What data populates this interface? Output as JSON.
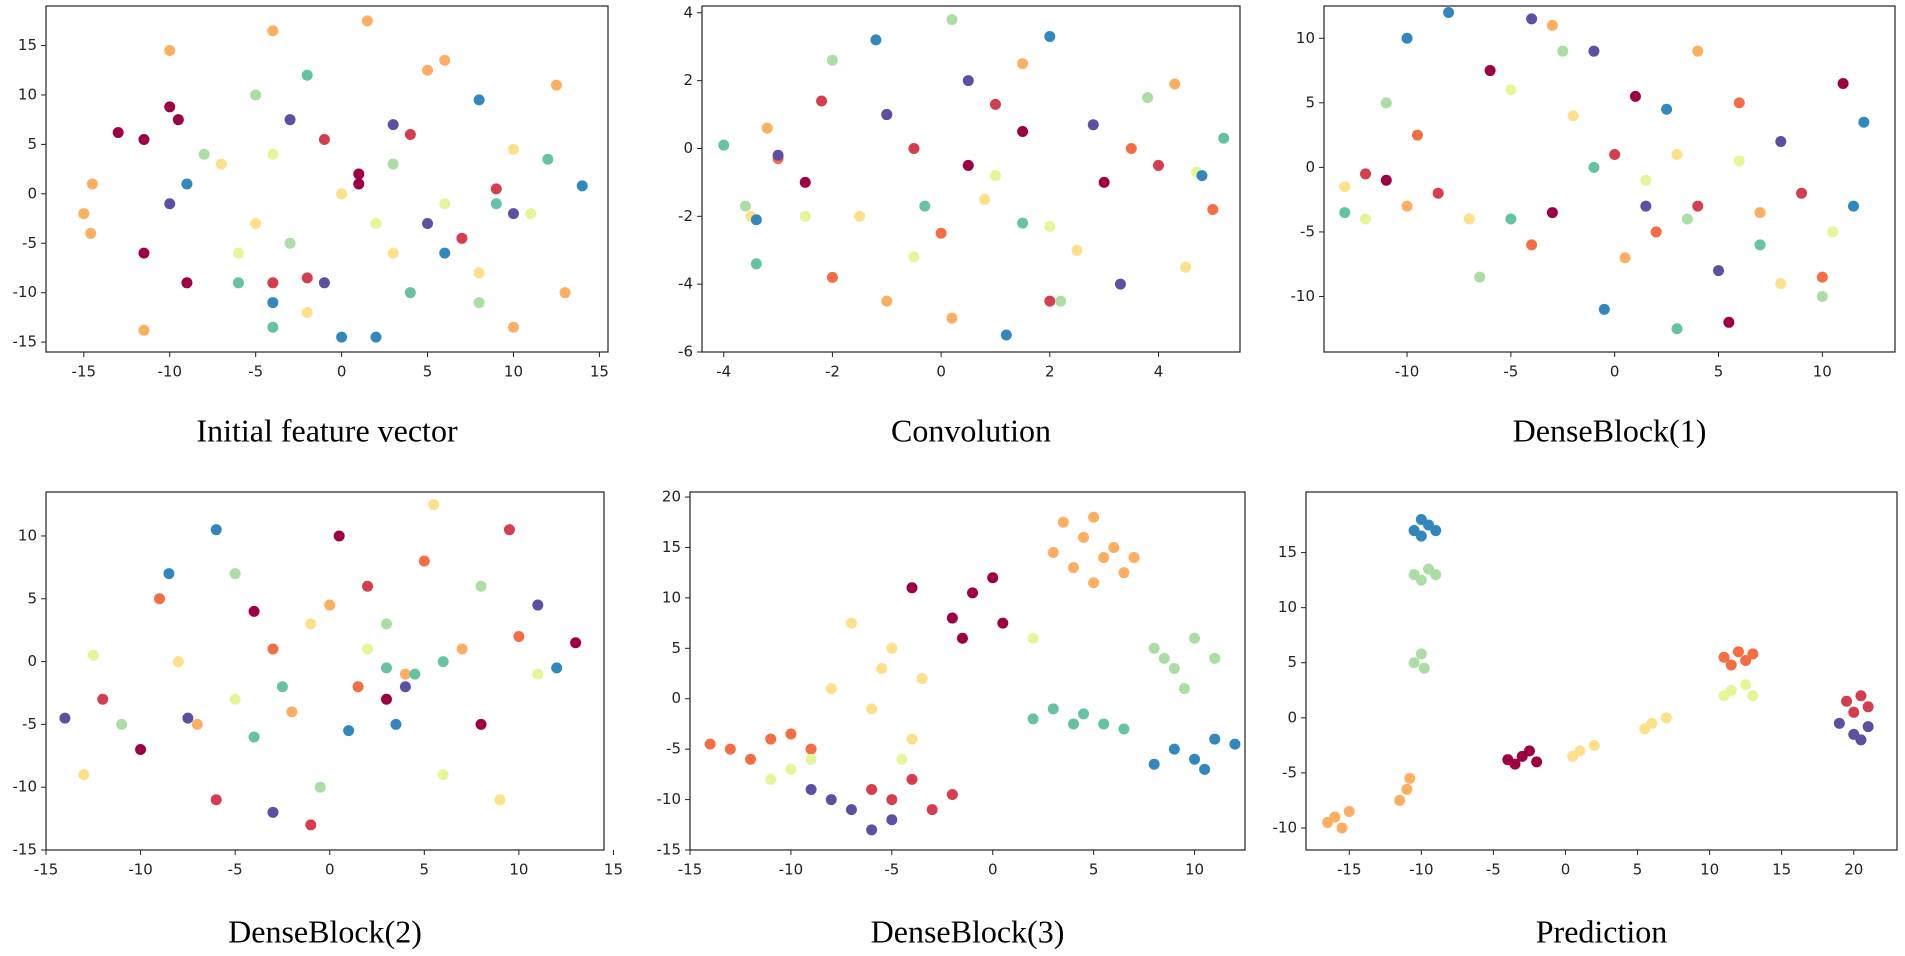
{
  "chart_data": [
    {
      "type": "scatter",
      "title": "Initial feature vector",
      "xlim": [
        -17.2,
        15.5
      ],
      "ylim": [
        -16,
        19
      ],
      "xticks": [
        -15,
        -10,
        -5,
        0,
        5,
        10,
        15
      ],
      "yticks": [
        -15,
        -10,
        -5,
        0,
        5,
        10,
        15
      ],
      "series": [
        {
          "color": "#fdae61",
          "x": [
            -15,
            -14.5,
            -14.6,
            -10,
            -4,
            1.5,
            5,
            6,
            12.5,
            13,
            10,
            -11.5
          ],
          "y": [
            -2,
            1,
            -4,
            14.5,
            16.5,
            17.5,
            12.5,
            13.5,
            11,
            -10,
            -13.5,
            -13.8
          ]
        },
        {
          "color": "#9e0142",
          "x": [
            -13,
            -11.5,
            -10,
            -9.5,
            -9,
            -11.5,
            1,
            1
          ],
          "y": [
            6.2,
            5.5,
            8.8,
            7.5,
            -9,
            -6,
            2,
            1
          ]
        },
        {
          "color": "#d53e4f",
          "x": [
            -4,
            -2,
            4,
            7,
            9,
            -1
          ],
          "y": [
            -9,
            -8.5,
            6,
            -4.5,
            0.5,
            5.5
          ]
        },
        {
          "color": "#fee08b",
          "x": [
            -7,
            -5,
            3,
            8,
            10,
            -2,
            0
          ],
          "y": [
            3,
            -3,
            -6,
            -8,
            4.5,
            -12,
            0
          ]
        },
        {
          "color": "#e6f598",
          "x": [
            -4,
            2,
            6,
            11,
            -6
          ],
          "y": [
            4,
            -3,
            -1,
            -2,
            -6
          ]
        },
        {
          "color": "#abdda4",
          "x": [
            -5,
            -3,
            3,
            8,
            -8
          ],
          "y": [
            10,
            -5,
            3,
            -11,
            4
          ]
        },
        {
          "color": "#66c2a5",
          "x": [
            -4,
            -6,
            4,
            9,
            12,
            -2
          ],
          "y": [
            -13.5,
            -9,
            -10,
            -1,
            3.5,
            12
          ]
        },
        {
          "color": "#3288bd",
          "x": [
            -9,
            -4,
            2,
            0,
            8,
            14,
            6
          ],
          "y": [
            1,
            -11,
            -14.5,
            -14.5,
            9.5,
            0.8,
            -6
          ]
        },
        {
          "color": "#5e4fa2",
          "x": [
            -10,
            -3,
            3,
            5,
            10,
            -1
          ],
          "y": [
            -1,
            7.5,
            7,
            -3,
            -2,
            -9
          ]
        }
      ]
    },
    {
      "type": "scatter",
      "title": "Convolution",
      "xlim": [
        -4.4,
        5.5
      ],
      "ylim": [
        -6,
        4.2
      ],
      "xticks": [
        -4,
        -2,
        0,
        2,
        4
      ],
      "yticks": [
        -6,
        -4,
        -2,
        0,
        2,
        4
      ],
      "series": [
        {
          "color": "#9e0142",
          "x": [
            -1,
            0.5,
            1.5,
            -2.5,
            3
          ],
          "y": [
            1,
            -0.5,
            0.5,
            -1,
            -1
          ]
        },
        {
          "color": "#d53e4f",
          "x": [
            -2.2,
            -0.5,
            2,
            1,
            4
          ],
          "y": [
            1.4,
            0,
            -4.5,
            1.3,
            -0.5
          ]
        },
        {
          "color": "#f46d43",
          "x": [
            -3,
            -2,
            0,
            3.5,
            5
          ],
          "y": [
            -0.3,
            -3.8,
            -2.5,
            0,
            -1.8
          ]
        },
        {
          "color": "#fdae61",
          "x": [
            -3.2,
            -1,
            0.2,
            1.5,
            4.3
          ],
          "y": [
            0.6,
            -4.5,
            -5,
            2.5,
            1.9
          ]
        },
        {
          "color": "#fee08b",
          "x": [
            -3.5,
            -1.5,
            0.8,
            2.5,
            4.5
          ],
          "y": [
            -2,
            -2,
            -1.5,
            -3,
            -3.5
          ]
        },
        {
          "color": "#e6f598",
          "x": [
            -2.5,
            -0.5,
            1,
            2,
            4.7
          ],
          "y": [
            -2,
            -3.2,
            -0.8,
            -2.3,
            -0.7
          ]
        },
        {
          "color": "#abdda4",
          "x": [
            -3.6,
            -2,
            0.2,
            2.2,
            3.8
          ],
          "y": [
            -1.7,
            2.6,
            3.8,
            -4.5,
            1.5
          ]
        },
        {
          "color": "#66c2a5",
          "x": [
            -4,
            -3.4,
            -0.3,
            1.5,
            5.2
          ],
          "y": [
            0.1,
            -3.4,
            -1.7,
            -2.2,
            0.3
          ]
        },
        {
          "color": "#3288bd",
          "x": [
            -3.4,
            -1.2,
            1.2,
            2,
            4.8
          ],
          "y": [
            -2.1,
            3.2,
            -5.5,
            3.3,
            -0.8
          ]
        },
        {
          "color": "#5e4fa2",
          "x": [
            -3,
            -1,
            0.5,
            2.8,
            3.3
          ],
          "y": [
            -0.2,
            1,
            2,
            0.7,
            -4
          ]
        }
      ]
    },
    {
      "type": "scatter",
      "title": "DenseBlock(1)",
      "xlim": [
        -14,
        13.5
      ],
      "ylim": [
        -14.3,
        12.5
      ],
      "xticks": [
        -10,
        -5,
        0,
        5,
        10
      ],
      "yticks": [
        -10,
        -5,
        0,
        5,
        10
      ],
      "series": [
        {
          "color": "#9e0142",
          "x": [
            -11,
            -6,
            -3,
            1,
            5.5,
            11
          ],
          "y": [
            -1,
            7.5,
            -3.5,
            5.5,
            -12,
            6.5
          ]
        },
        {
          "color": "#d53e4f",
          "x": [
            -12,
            -8.5,
            0,
            4,
            9
          ],
          "y": [
            -0.5,
            -2,
            1,
            -3,
            -2
          ]
        },
        {
          "color": "#f46d43",
          "x": [
            -9.5,
            -4,
            2,
            6,
            10
          ],
          "y": [
            2.5,
            -6,
            -5,
            5,
            -8.5
          ]
        },
        {
          "color": "#fdae61",
          "x": [
            -10,
            -3,
            0.5,
            4,
            7
          ],
          "y": [
            -3,
            11,
            -7,
            9,
            -3.5
          ]
        },
        {
          "color": "#fee08b",
          "x": [
            -13,
            -7,
            -2,
            3,
            8
          ],
          "y": [
            -1.5,
            -4,
            4,
            1,
            -9
          ]
        },
        {
          "color": "#e6f598",
          "x": [
            -12,
            -5,
            1.5,
            6,
            10.5
          ],
          "y": [
            -4,
            6,
            -1,
            0.5,
            -5
          ]
        },
        {
          "color": "#abdda4",
          "x": [
            -11,
            -6.5,
            -2.5,
            3.5,
            10
          ],
          "y": [
            5,
            -8.5,
            9,
            -4,
            -10
          ]
        },
        {
          "color": "#66c2a5",
          "x": [
            -13,
            -5,
            -1,
            3,
            7
          ],
          "y": [
            -3.5,
            -4,
            0,
            -12.5,
            -6
          ]
        },
        {
          "color": "#3288bd",
          "x": [
            -8,
            -10,
            -0.5,
            2.5,
            12,
            11.5
          ],
          "y": [
            12,
            10,
            -11,
            4.5,
            3.5,
            -3
          ]
        },
        {
          "color": "#5e4fa2",
          "x": [
            -4,
            -1,
            1.5,
            5,
            8
          ],
          "y": [
            11.5,
            9,
            -3,
            -8,
            2
          ]
        }
      ]
    },
    {
      "type": "scatter",
      "title": "DenseBlock(2)",
      "xlim": [
        -15,
        14.5
      ],
      "ylim": [
        -15,
        13.5
      ],
      "xticks": [
        -15,
        -10,
        -5,
        0,
        5,
        10,
        15
      ],
      "yticks": [
        -15,
        -10,
        -5,
        0,
        5,
        10
      ],
      "series": [
        {
          "color": "#9e0142",
          "x": [
            -10,
            -4,
            0.5,
            3,
            8,
            13
          ],
          "y": [
            -7,
            4,
            10,
            -3,
            -5,
            1.5
          ]
        },
        {
          "color": "#d53e4f",
          "x": [
            -12,
            -6,
            -1,
            2,
            9.5
          ],
          "y": [
            -3,
            -11,
            -13,
            6,
            10.5
          ]
        },
        {
          "color": "#f46d43",
          "x": [
            -9,
            -3,
            1.5,
            5,
            10
          ],
          "y": [
            5,
            1,
            -2,
            8,
            2
          ]
        },
        {
          "color": "#fdae61",
          "x": [
            -7,
            -2,
            0,
            4,
            7
          ],
          "y": [
            -5,
            -4,
            4.5,
            -1,
            1
          ]
        },
        {
          "color": "#fee08b",
          "x": [
            -13,
            -8,
            -1,
            5.5,
            9
          ],
          "y": [
            -9,
            0,
            3,
            12.5,
            -11
          ]
        },
        {
          "color": "#e6f598",
          "x": [
            -12.5,
            -5,
            2,
            6,
            11
          ],
          "y": [
            0.5,
            -3,
            1,
            -9,
            -1
          ]
        },
        {
          "color": "#abdda4",
          "x": [
            -11,
            -5,
            -0.5,
            3,
            8
          ],
          "y": [
            -5,
            7,
            -10,
            3,
            6
          ]
        },
        {
          "color": "#66c2a5",
          "x": [
            -4,
            -2.5,
            3,
            4.5,
            6
          ],
          "y": [
            -6,
            -2,
            -0.5,
            -1,
            0
          ]
        },
        {
          "color": "#3288bd",
          "x": [
            -8.5,
            -6,
            1,
            3.5,
            12
          ],
          "y": [
            7,
            10.5,
            -5.5,
            -5,
            -0.5
          ]
        },
        {
          "color": "#5e4fa2",
          "x": [
            -14,
            -7.5,
            -3,
            4,
            11
          ],
          "y": [
            -4.5,
            -4.5,
            -12,
            -2,
            4.5
          ]
        }
      ]
    },
    {
      "type": "scatter",
      "title": "DenseBlock(3)",
      "xlim": [
        -15,
        12.5
      ],
      "ylim": [
        -15,
        20.5
      ],
      "xticks": [
        -15,
        -10,
        -5,
        0,
        5,
        10
      ],
      "yticks": [
        -15,
        -10,
        -5,
        0,
        5,
        10,
        15,
        20
      ],
      "series": [
        {
          "color": "#fdae61",
          "x": [
            3.5,
            4.5,
            5,
            3,
            4,
            5.5,
            6.5,
            7,
            5,
            6
          ],
          "y": [
            17.5,
            16,
            18,
            14.5,
            13,
            14,
            12.5,
            14,
            11.5,
            15
          ]
        },
        {
          "color": "#9e0142",
          "x": [
            -1,
            0,
            -2,
            -1.5,
            0.5,
            -4
          ],
          "y": [
            10.5,
            12,
            8,
            6,
            7.5,
            11
          ]
        },
        {
          "color": "#fee08b",
          "x": [
            -7,
            -5,
            -3.5,
            -6,
            -4,
            -5.5,
            -8
          ],
          "y": [
            7.5,
            5,
            2,
            -1,
            -4,
            3,
            1
          ]
        },
        {
          "color": "#f46d43",
          "x": [
            -13,
            -11,
            -12,
            -10,
            -9,
            -14
          ],
          "y": [
            -5,
            -4,
            -6,
            -3.5,
            -5,
            -4.5
          ]
        },
        {
          "color": "#d53e4f",
          "x": [
            -5,
            -4,
            -3,
            -6,
            -2
          ],
          "y": [
            -10,
            -8,
            -11,
            -9,
            -9.5
          ]
        },
        {
          "color": "#5e4fa2",
          "x": [
            -7,
            -6,
            -8,
            -5,
            -9
          ],
          "y": [
            -11,
            -13,
            -10,
            -12,
            -9
          ]
        },
        {
          "color": "#e6f598",
          "x": [
            -10,
            -9,
            -11,
            -4.5,
            2
          ],
          "y": [
            -7,
            -6,
            -8,
            -6,
            6
          ]
        },
        {
          "color": "#abdda4",
          "x": [
            8,
            9,
            10,
            9.5,
            11,
            8.5
          ],
          "y": [
            5,
            3,
            6,
            1,
            4,
            4
          ]
        },
        {
          "color": "#66c2a5",
          "x": [
            3,
            4.5,
            5.5,
            6.5,
            2,
            4
          ],
          "y": [
            -1,
            -1.5,
            -2.5,
            -3,
            -2,
            -2.5
          ]
        },
        {
          "color": "#3288bd",
          "x": [
            9,
            10,
            11,
            8,
            12,
            10.5
          ],
          "y": [
            -5,
            -6,
            -4,
            -6.5,
            -4.5,
            -7
          ]
        }
      ]
    },
    {
      "type": "scatter",
      "title": "Prediction",
      "xlim": [
        -18,
        23
      ],
      "ylim": [
        -12,
        20.5
      ],
      "xticks": [
        -15,
        -10,
        -5,
        0,
        5,
        10,
        15,
        20
      ],
      "yticks": [
        -10,
        -5,
        0,
        5,
        10,
        15
      ],
      "series": [
        {
          "color": "#3288bd",
          "x": [
            -10.5,
            -9.5,
            -10,
            -9,
            -10
          ],
          "y": [
            17,
            17.5,
            18,
            17,
            16.5
          ]
        },
        {
          "color": "#abdda4",
          "x": [
            -10.5,
            -9.5,
            -10,
            -9,
            -10.5,
            -10,
            -9.8
          ],
          "y": [
            13,
            13.5,
            12.5,
            13,
            5,
            5.8,
            4.5
          ]
        },
        {
          "color": "#fdae61",
          "x": [
            -16,
            -15,
            -16.5,
            -15.5,
            -11,
            -11.5,
            -10.8
          ],
          "y": [
            -9,
            -8.5,
            -9.5,
            -10,
            -6.5,
            -7.5,
            -5.5
          ]
        },
        {
          "color": "#9e0142",
          "x": [
            -3,
            -2,
            -3.5,
            -2.5,
            -4
          ],
          "y": [
            -3.5,
            -4,
            -4.2,
            -3,
            -3.8
          ]
        },
        {
          "color": "#fee08b",
          "x": [
            1,
            2,
            0.5,
            6,
            7,
            5.5
          ],
          "y": [
            -3,
            -2.5,
            -3.5,
            -0.5,
            0,
            -1
          ]
        },
        {
          "color": "#f46d43",
          "x": [
            11,
            12,
            13,
            11.5,
            12.5
          ],
          "y": [
            5.5,
            6,
            5.8,
            4.8,
            5.2
          ]
        },
        {
          "color": "#e6f598",
          "x": [
            11.5,
            12.5,
            13,
            11
          ],
          "y": [
            2.5,
            3,
            2,
            2
          ]
        },
        {
          "color": "#d53e4f",
          "x": [
            19.5,
            20.5,
            21,
            20
          ],
          "y": [
            1.5,
            2,
            1,
            0.5
          ]
        },
        {
          "color": "#5e4fa2",
          "x": [
            19,
            20,
            21,
            20.5
          ],
          "y": [
            -0.5,
            -1.5,
            -0.8,
            -2
          ]
        }
      ]
    }
  ]
}
